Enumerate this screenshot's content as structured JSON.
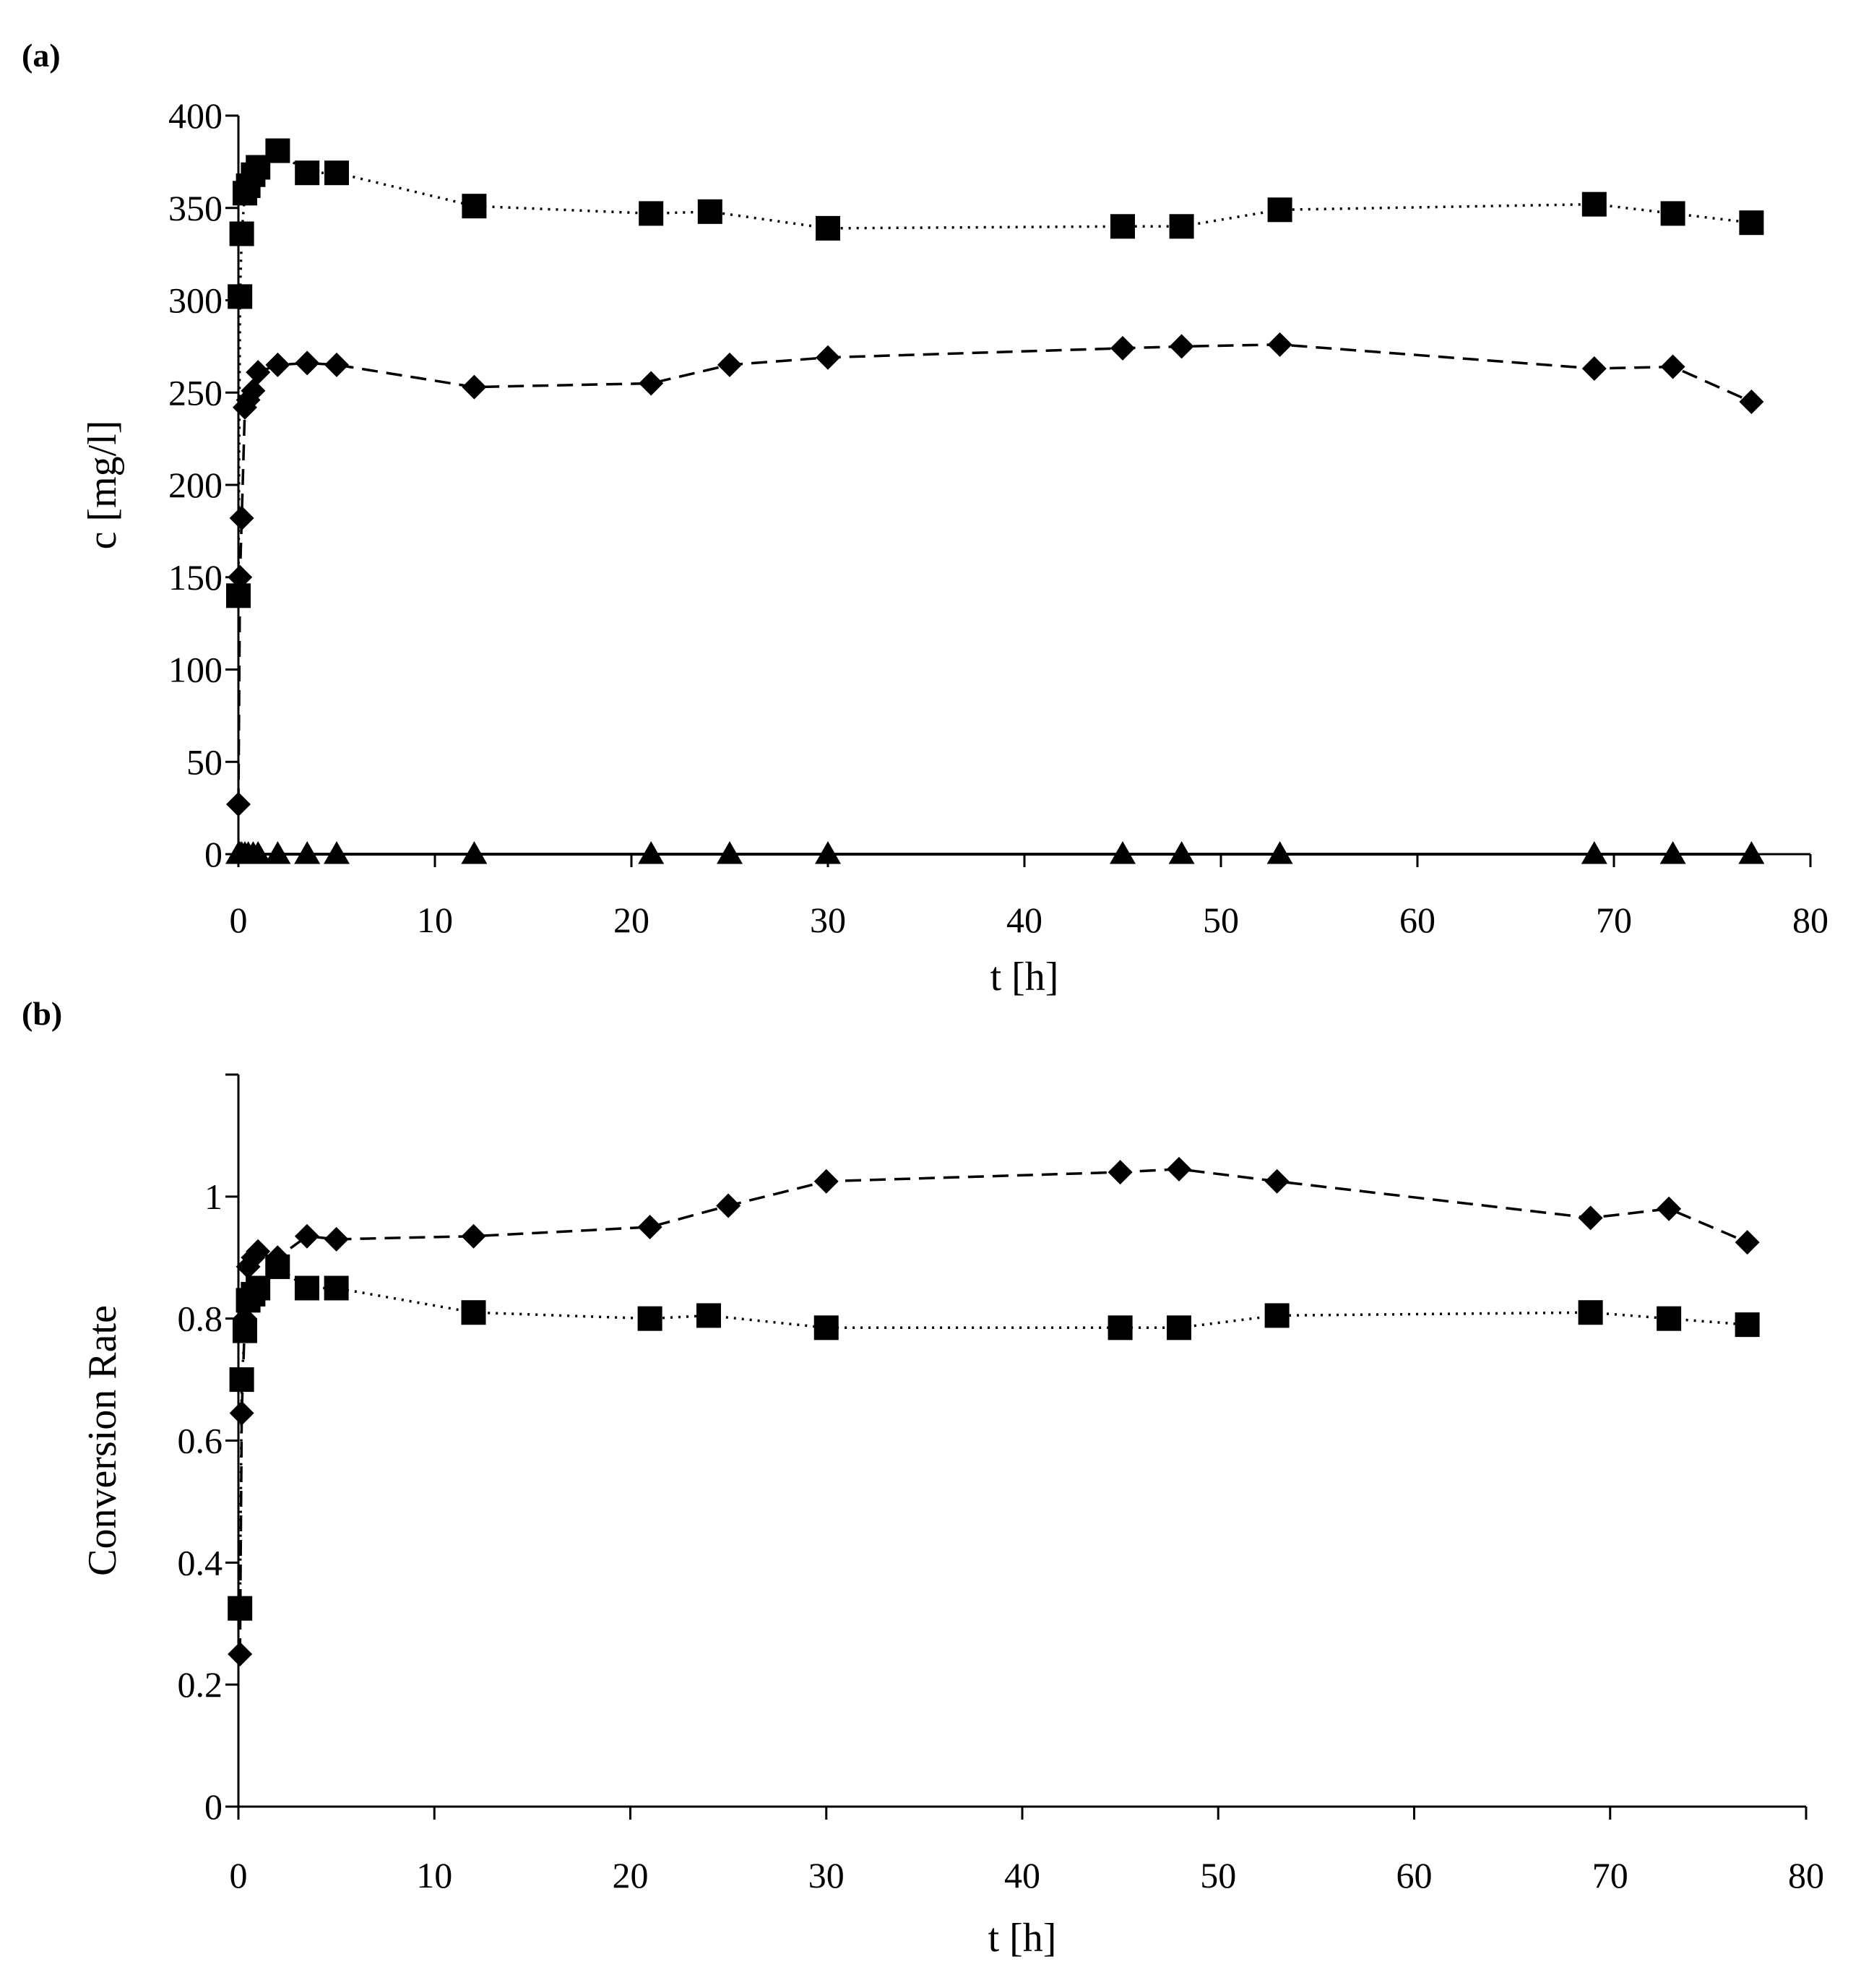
{
  "chart_data": [
    {
      "panel_label": "(a)",
      "type": "line",
      "xlabel": "t [h]",
      "ylabel": "c [mg/l]",
      "xlim": [
        0,
        80
      ],
      "ylim": [
        0,
        400
      ],
      "xticks": [
        0,
        10,
        20,
        30,
        40,
        50,
        60,
        70,
        80
      ],
      "yticks": [
        0,
        50,
        100,
        150,
        200,
        250,
        300,
        350,
        400
      ],
      "grid": false,
      "series": [
        {
          "name": "squares",
          "marker": "square",
          "line": "dotted",
          "x": [
            0,
            0.08,
            0.17,
            0.33,
            0.5,
            0.75,
            1,
            2,
            3.5,
            5,
            12,
            21,
            24,
            30,
            45,
            48,
            53,
            69,
            73,
            77
          ],
          "y": [
            140,
            302,
            336,
            358,
            362,
            368,
            372,
            381,
            369,
            369,
            351,
            347,
            348,
            339,
            340,
            340,
            349,
            352,
            347,
            342
          ]
        },
        {
          "name": "diamonds",
          "marker": "diamond",
          "line": "dashed",
          "x": [
            0,
            0.08,
            0.17,
            0.33,
            0.5,
            0.75,
            1,
            2,
            3.5,
            5,
            12,
            21,
            25,
            30,
            45,
            48,
            53,
            69,
            73,
            77
          ],
          "y": [
            27,
            150,
            182,
            242,
            246,
            251,
            261,
            265,
            266,
            265,
            253,
            255,
            265,
            269,
            274,
            275,
            276,
            263,
            264,
            245
          ]
        },
        {
          "name": "triangles",
          "marker": "triangle",
          "line": "solid",
          "x": [
            0,
            0.08,
            0.17,
            0.33,
            0.5,
            0.75,
            1,
            2,
            3.5,
            5,
            12,
            21,
            25,
            30,
            45,
            48,
            53,
            69,
            73,
            77
          ],
          "y": [
            0,
            0,
            0,
            0,
            0,
            0,
            0,
            0,
            0,
            0,
            0,
            0,
            0,
            0,
            0,
            0,
            0,
            0,
            0,
            0
          ]
        }
      ]
    },
    {
      "panel_label": "(b)",
      "type": "line",
      "xlabel": "t [h]",
      "ylabel": "Conversion Rate",
      "xlim": [
        0,
        80
      ],
      "ylim": [
        0,
        1.2
      ],
      "xticks": [
        0,
        10,
        20,
        30,
        40,
        50,
        60,
        70,
        80
      ],
      "yticks": [
        0,
        0.2,
        0.4,
        0.6,
        0.8,
        1
      ],
      "ytick_labels": [
        "0",
        "0.2",
        "0.4",
        "0.6",
        "0.8",
        "1"
      ],
      "grid": false,
      "series": [
        {
          "name": "squares",
          "marker": "square",
          "line": "dotted",
          "x": [
            0.08,
            0.17,
            0.33,
            0.5,
            0.75,
            1,
            2,
            3.5,
            5,
            12,
            21,
            24,
            30,
            45,
            48,
            53,
            69,
            73,
            77
          ],
          "y": [
            0.325,
            0.7,
            0.78,
            0.83,
            0.84,
            0.85,
            0.885,
            0.85,
            0.85,
            0.81,
            0.8,
            0.805,
            0.785,
            0.785,
            0.785,
            0.805,
            0.81,
            0.8,
            0.79
          ]
        },
        {
          "name": "diamonds",
          "marker": "diamond",
          "line": "dashed",
          "x": [
            0.08,
            0.17,
            0.33,
            0.5,
            0.75,
            1,
            2,
            3.5,
            5,
            12,
            21,
            25,
            30,
            45,
            48,
            53,
            69,
            73,
            77
          ],
          "y": [
            0.25,
            0.645,
            0.8,
            0.885,
            0.9,
            0.91,
            0.9,
            0.935,
            0.93,
            0.935,
            0.95,
            0.985,
            1.025,
            1.04,
            1.045,
            1.025,
            0.965,
            0.98,
            0.925
          ]
        }
      ]
    }
  ]
}
